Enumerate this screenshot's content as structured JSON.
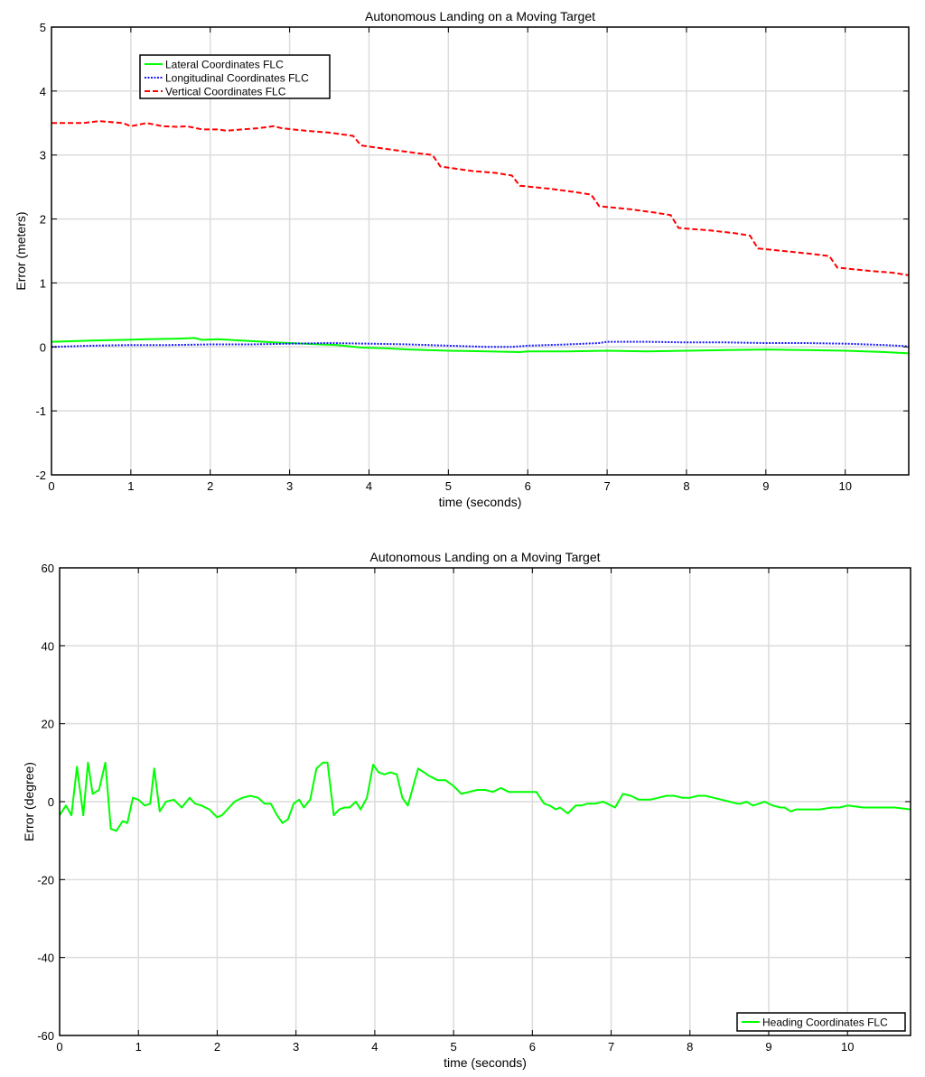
{
  "chart_data": [
    {
      "type": "line",
      "title": "Autonomous Landing on a Moving Target",
      "xlabel": "time (seconds)",
      "ylabel": "Error (meters)",
      "xlim": [
        0,
        10.8
      ],
      "ylim": [
        -2,
        5
      ],
      "xticks": [
        0,
        1,
        2,
        3,
        4,
        5,
        6,
        7,
        8,
        9,
        10
      ],
      "yticks": [
        -2,
        -1,
        0,
        1,
        2,
        3,
        4,
        5
      ],
      "grid": true,
      "legend_position": "top-left",
      "series": [
        {
          "name": "Lateral Coordinates FLC",
          "color": "#00ff00",
          "style": "solid",
          "x": [
            0,
            0.5,
            0.9,
            1.2,
            1.6,
            1.8,
            1.9,
            2.1,
            2.4,
            2.8,
            3.2,
            3.6,
            3.9,
            4.2,
            4.5,
            5.0,
            5.5,
            5.9,
            6.0,
            6.5,
            7.0,
            7.5,
            8.0,
            8.5,
            9.0,
            9.5,
            10.0,
            10.5,
            10.8
          ],
          "y": [
            0.08,
            0.1,
            0.11,
            0.12,
            0.13,
            0.14,
            0.11,
            0.12,
            0.1,
            0.07,
            0.05,
            0.03,
            -0.01,
            -0.02,
            -0.04,
            -0.06,
            -0.07,
            -0.08,
            -0.07,
            -0.07,
            -0.06,
            -0.07,
            -0.06,
            -0.05,
            -0.04,
            -0.05,
            -0.06,
            -0.08,
            -0.1
          ]
        },
        {
          "name": "Longitudinal Coordinates FLC",
          "color": "#1a1aff",
          "style": "dotted",
          "x": [
            0,
            0.5,
            1.0,
            1.5,
            2.0,
            2.5,
            3.0,
            3.5,
            4.0,
            4.5,
            5.0,
            5.5,
            5.8,
            6.0,
            6.5,
            6.9,
            7.0,
            7.5,
            8.0,
            8.5,
            9.0,
            9.5,
            10.0,
            10.5,
            10.8
          ],
          "y": [
            0.0,
            0.02,
            0.03,
            0.03,
            0.04,
            0.04,
            0.05,
            0.06,
            0.05,
            0.04,
            0.02,
            0.0,
            0.0,
            0.02,
            0.04,
            0.06,
            0.08,
            0.08,
            0.07,
            0.07,
            0.06,
            0.06,
            0.05,
            0.03,
            0.01
          ]
        },
        {
          "name": "Vertical Coordinates FLC",
          "color": "#ff0000",
          "style": "dashed",
          "x": [
            0,
            0.4,
            0.6,
            0.9,
            1.0,
            1.2,
            1.4,
            1.6,
            1.7,
            1.9,
            2.1,
            2.2,
            2.4,
            2.6,
            2.8,
            2.9,
            3.2,
            3.5,
            3.8,
            3.9,
            4.3,
            4.6,
            4.8,
            4.9,
            5.3,
            5.6,
            5.8,
            5.9,
            6.3,
            6.6,
            6.8,
            6.9,
            7.3,
            7.6,
            7.8,
            7.9,
            8.3,
            8.6,
            8.8,
            8.9,
            9.3,
            9.6,
            9.8,
            9.9,
            10.3,
            10.6,
            10.8
          ],
          "y": [
            3.5,
            3.5,
            3.53,
            3.5,
            3.45,
            3.5,
            3.45,
            3.44,
            3.45,
            3.4,
            3.4,
            3.38,
            3.4,
            3.42,
            3.45,
            3.42,
            3.38,
            3.35,
            3.3,
            3.15,
            3.08,
            3.03,
            3.0,
            2.82,
            2.75,
            2.72,
            2.68,
            2.52,
            2.47,
            2.42,
            2.38,
            2.2,
            2.15,
            2.1,
            2.06,
            1.86,
            1.82,
            1.78,
            1.74,
            1.54,
            1.49,
            1.45,
            1.42,
            1.24,
            1.19,
            1.16,
            1.12
          ]
        }
      ]
    },
    {
      "type": "line",
      "title": "Autonomous Landing on a Moving Target",
      "xlabel": "time (seconds)",
      "ylabel": "Error (degree)",
      "xlim": [
        0,
        10.8
      ],
      "ylim": [
        -60,
        60
      ],
      "xticks": [
        0,
        1,
        2,
        3,
        4,
        5,
        6,
        7,
        8,
        9,
        10
      ],
      "yticks": [
        -60,
        -40,
        -20,
        0,
        20,
        40,
        60
      ],
      "grid": true,
      "legend_position": "bottom-right",
      "series": [
        {
          "name": "Heading Coordinates FLC",
          "color": "#00ff00",
          "style": "solid",
          "x": [
            0,
            0.08,
            0.15,
            0.22,
            0.3,
            0.36,
            0.42,
            0.5,
            0.58,
            0.65,
            0.72,
            0.8,
            0.86,
            0.93,
            1.0,
            1.08,
            1.15,
            1.2,
            1.27,
            1.35,
            1.45,
            1.55,
            1.65,
            1.72,
            1.8,
            1.9,
            2.0,
            2.06,
            2.13,
            2.22,
            2.32,
            2.42,
            2.52,
            2.6,
            2.68,
            2.76,
            2.83,
            2.9,
            2.97,
            3.04,
            3.1,
            3.18,
            3.26,
            3.34,
            3.4,
            3.48,
            3.55,
            3.62,
            3.68,
            3.76,
            3.82,
            3.9,
            3.98,
            4.05,
            4.12,
            4.2,
            4.28,
            4.35,
            4.42,
            4.55,
            4.7,
            4.8,
            4.9,
            5.0,
            5.1,
            5.3,
            5.4,
            5.5,
            5.6,
            5.7,
            5.8,
            5.95,
            6.05,
            6.15,
            6.22,
            6.3,
            6.35,
            6.45,
            6.55,
            6.62,
            6.7,
            6.8,
            6.9,
            6.95,
            7.05,
            7.15,
            7.25,
            7.35,
            7.5,
            7.6,
            7.7,
            7.8,
            7.9,
            8.0,
            8.1,
            8.2,
            8.3,
            8.4,
            8.5,
            8.6,
            8.65,
            8.72,
            8.8,
            8.88,
            8.95,
            9.05,
            9.15,
            9.2,
            9.28,
            9.35,
            9.5,
            9.65,
            9.8,
            9.9,
            10.0,
            10.2,
            10.4,
            10.6,
            10.8
          ],
          "y": [
            -3.5,
            -1,
            -3.5,
            9,
            -3.5,
            10,
            2,
            3,
            10,
            -7,
            -7.5,
            -5,
            -5.5,
            1,
            0.5,
            -1,
            -0.5,
            8.5,
            -2.5,
            0,
            0.5,
            -1.5,
            1,
            -0.5,
            -1,
            -2,
            -4,
            -3.5,
            -2,
            0,
            1,
            1.5,
            1,
            -0.5,
            -0.5,
            -3.5,
            -5.5,
            -4.5,
            -0.5,
            0.5,
            -1.5,
            0.5,
            8.5,
            10,
            10,
            -3.5,
            -2,
            -1.5,
            -1.5,
            0,
            -2,
            1,
            9.5,
            7.5,
            7,
            7.5,
            7,
            1,
            -1,
            8.5,
            6.5,
            5.5,
            5.5,
            4,
            2,
            3,
            3,
            2.5,
            3.5,
            2.5,
            2.5,
            2.5,
            2.5,
            -0.5,
            -1,
            -2,
            -1.5,
            -3,
            -1,
            -1,
            -0.5,
            -0.5,
            0,
            -0.5,
            -1.5,
            2,
            1.5,
            0.5,
            0.5,
            1,
            1.5,
            1.5,
            1,
            1,
            1.5,
            1.5,
            1,
            0.5,
            0,
            -0.5,
            -0.5,
            0,
            -1,
            -0.5,
            0,
            -1,
            -1.5,
            -1.5,
            -2.5,
            -2,
            -2,
            -2,
            -1.5,
            -1.5,
            -1,
            -1.5,
            -1.5,
            -1.5,
            -2
          ]
        }
      ]
    }
  ]
}
